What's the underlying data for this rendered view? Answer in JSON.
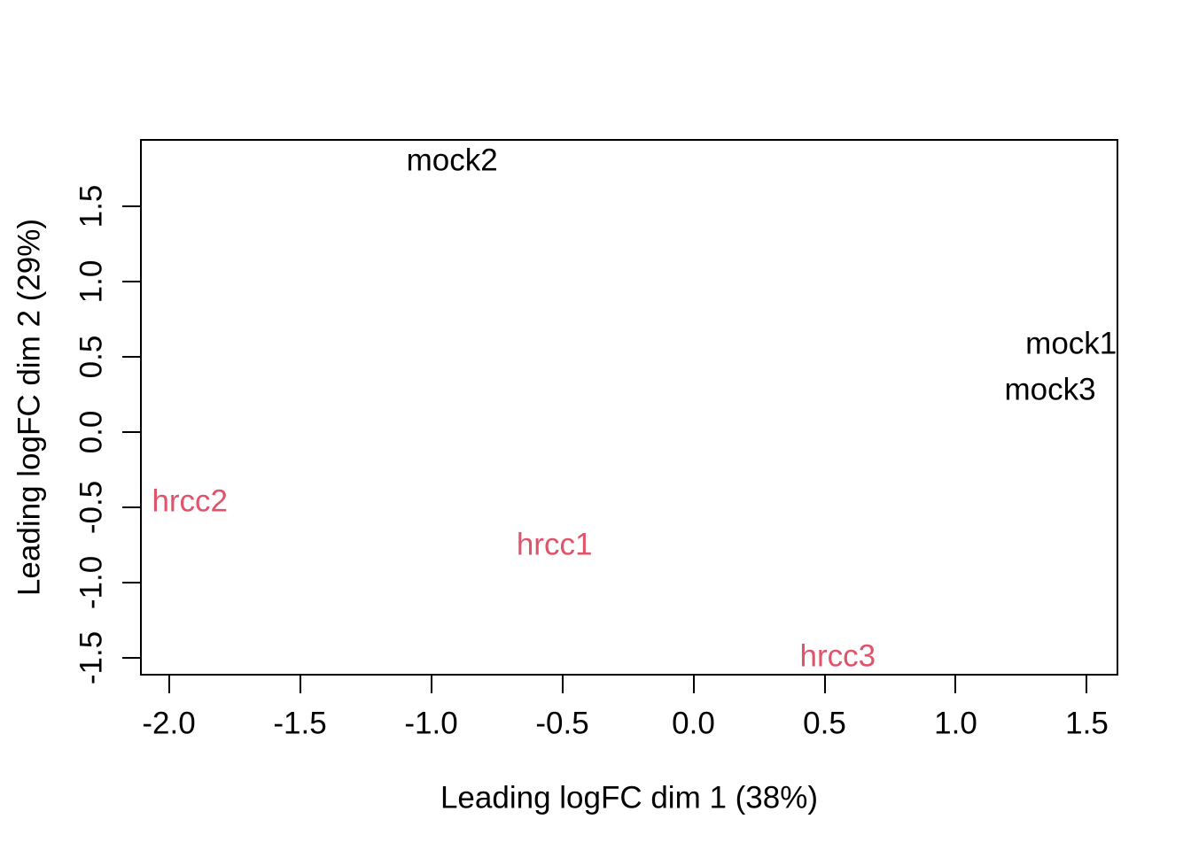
{
  "chart_data": {
    "type": "scatter",
    "title": "",
    "xlabel": "Leading logFC dim 1 (38%)",
    "ylabel": "Leading logFC dim 2 (29%)",
    "xlim": [
      -2.11,
      1.62
    ],
    "ylim": [
      -1.62,
      1.95
    ],
    "xtick_labels": [
      "-2.0",
      "-1.5",
      "-1.0",
      "-0.5",
      "0.0",
      "0.5",
      "1.0",
      "1.5"
    ],
    "ytick_labels": [
      "-1.5",
      "-1.0",
      "-0.5",
      "0.0",
      "0.5",
      "1.0",
      "1.5"
    ],
    "grid": false,
    "legend": false,
    "point_style": "text-labels-only",
    "text_color": "#000000",
    "series": [
      {
        "name": "mock",
        "color": "#000000",
        "points": [
          {
            "label": "mock1",
            "x": 1.44,
            "y": 0.59
          },
          {
            "label": "mock2",
            "x": -0.92,
            "y": 1.81
          },
          {
            "label": "mock3",
            "x": 1.36,
            "y": 0.28
          }
        ]
      },
      {
        "name": "hrcc",
        "color": "#DF536B",
        "points": [
          {
            "label": "hrcc1",
            "x": -0.53,
            "y": -0.75
          },
          {
            "label": "hrcc2",
            "x": -1.92,
            "y": -0.46
          },
          {
            "label": "hrcc3",
            "x": 0.55,
            "y": -1.49
          }
        ]
      }
    ]
  }
}
